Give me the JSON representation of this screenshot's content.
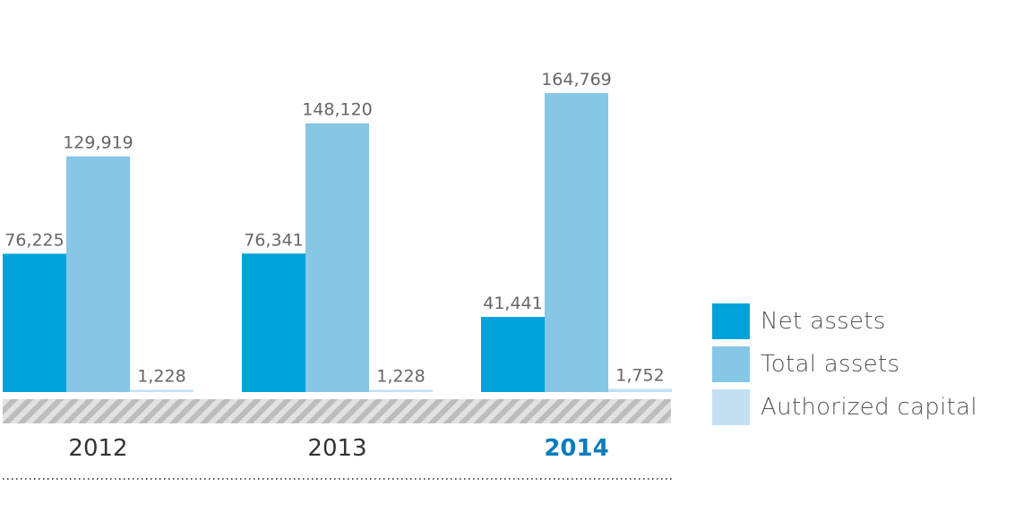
{
  "chart_data": {
    "type": "bar",
    "categories": [
      "2012",
      "2013",
      "2014"
    ],
    "highlight_category": "2014",
    "series": [
      {
        "name": "Net assets",
        "values": [
          76225,
          76341,
          41441
        ],
        "labels": [
          "76,225",
          "76,341",
          "41,441"
        ]
      },
      {
        "name": "Total assets",
        "values": [
          129919,
          148120,
          164769
        ],
        "labels": [
          "129,919",
          "148,120",
          "164,769"
        ]
      },
      {
        "name": "Authorized capital",
        "values": [
          1228,
          1228,
          1752
        ],
        "labels": [
          "1,228",
          "1,228",
          "1,752"
        ]
      }
    ],
    "ylim": [
      0,
      164769
    ],
    "grid": false,
    "legend_position": "right"
  },
  "colors": {
    "series": [
      "#00a3d9",
      "#86c7e6",
      "#c3e1f3"
    ],
    "category_label": "#333333",
    "highlight_label": "#0b7dbd",
    "value_label": "#666666",
    "hatch_stripe": "#bdbdbd",
    "hatch_background": "#e2e2e2",
    "dotted_line": "#555555"
  }
}
